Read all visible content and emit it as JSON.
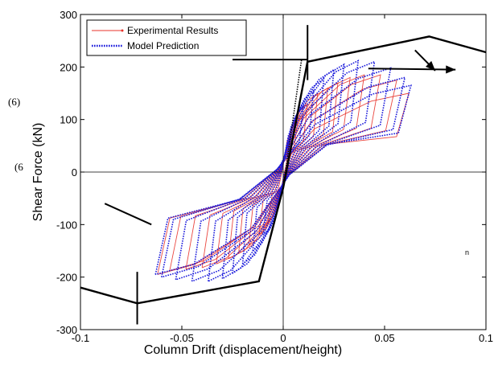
{
  "chart_data": {
    "type": "line",
    "title": "",
    "xlabel": "Column Drift (displacement/height)",
    "ylabel": "Shear Force (kN)",
    "xlim": [
      -0.1,
      0.1
    ],
    "ylim": [
      -300,
      300
    ],
    "xticks": [
      -0.1,
      -0.05,
      0,
      0.05,
      0.1
    ],
    "xtick_labels": [
      "-0.1",
      "-0.05",
      "0",
      "0.05",
      "0.1"
    ],
    "yticks": [
      -300,
      -200,
      -100,
      0,
      100,
      200,
      300
    ],
    "ytick_labels": [
      "-300",
      "-200",
      "-100",
      "0",
      "100",
      "200",
      "300"
    ],
    "grid": false,
    "legend_position": "top-left",
    "legend": [
      {
        "label": "Experimental Results",
        "color": "#e8332b",
        "style": "solid",
        "marker": "dot"
      },
      {
        "label": "Model Prediction",
        "color": "#1a1adb",
        "style": "dotted"
      }
    ],
    "colors": {
      "experimental": "#e8332b",
      "model": "#1a1adb",
      "envelope": "#000000",
      "axes": "#000000"
    },
    "annotations": [
      {
        "text": "(6)"
      },
      {
        "text": "(6"
      },
      {
        "text": "n"
      }
    ],
    "envelope": {
      "name": "",
      "points": [
        [
          -0.1,
          -220
        ],
        [
          -0.072,
          -250
        ],
        [
          -0.012,
          -208
        ],
        [
          0.0,
          -30
        ],
        [
          0.012,
          210
        ],
        [
          0.072,
          258
        ],
        [
          0.1,
          228
        ]
      ]
    },
    "envelope_markers": [
      {
        "type": "vertical-tick",
        "x": -0.072,
        "y_range": [
          -290,
          -190
        ]
      },
      {
        "type": "vertical-tick",
        "x": 0.012,
        "y_range": [
          175,
          280
        ]
      },
      {
        "type": "segment",
        "from": [
          -0.088,
          -60
        ],
        "to": [
          -0.065,
          -100
        ]
      },
      {
        "type": "segment",
        "from": [
          -0.025,
          214
        ],
        "to": [
          0.012,
          214
        ]
      }
    ],
    "arrows": [
      {
        "from": [
          0.065,
          232
        ],
        "to": [
          0.075,
          193
        ]
      },
      {
        "from": [
          0.042,
          197
        ],
        "to": [
          0.085,
          195
        ]
      }
    ],
    "skeleton_dotted": {
      "points": [
        [
          0.0,
          -30
        ],
        [
          0.009,
          213
        ]
      ]
    },
    "series": [
      {
        "name": "Experimental Results",
        "cycles": [
          {
            "amp": 0.0075,
            "fpos": 105,
            "fneg": -95
          },
          {
            "amp": 0.012,
            "fpos": 130,
            "fneg": -120
          },
          {
            "amp": 0.017,
            "fpos": 150,
            "fneg": -140
          },
          {
            "amp": 0.022,
            "fpos": 160,
            "fneg": -155
          },
          {
            "amp": 0.027,
            "fpos": 170,
            "fneg": -165
          },
          {
            "amp": 0.033,
            "fpos": 180,
            "fneg": -175
          },
          {
            "amp": 0.04,
            "fpos": 185,
            "fneg": -182
          },
          {
            "amp": 0.048,
            "fpos": 185,
            "fneg": -185
          },
          {
            "amp": 0.056,
            "fpos": 175,
            "fneg": -188
          },
          {
            "amp": 0.062,
            "fpos": 150,
            "fneg": -195
          }
        ]
      },
      {
        "name": "Model Prediction",
        "cycles": [
          {
            "amp": 0.01,
            "fpos": 125,
            "fneg": -120
          },
          {
            "amp": 0.015,
            "fpos": 155,
            "fneg": -150
          },
          {
            "amp": 0.02,
            "fpos": 178,
            "fneg": -175
          },
          {
            "amp": 0.025,
            "fpos": 195,
            "fneg": -193
          },
          {
            "amp": 0.03,
            "fpos": 205,
            "fneg": -203
          },
          {
            "amp": 0.037,
            "fpos": 212,
            "fneg": -208
          },
          {
            "amp": 0.045,
            "fpos": 210,
            "fneg": -208
          },
          {
            "amp": 0.053,
            "fpos": 198,
            "fneg": -205
          },
          {
            "amp": 0.06,
            "fpos": 180,
            "fneg": -200
          },
          {
            "amp": 0.063,
            "fpos": 165,
            "fneg": -195
          }
        ]
      }
    ]
  }
}
